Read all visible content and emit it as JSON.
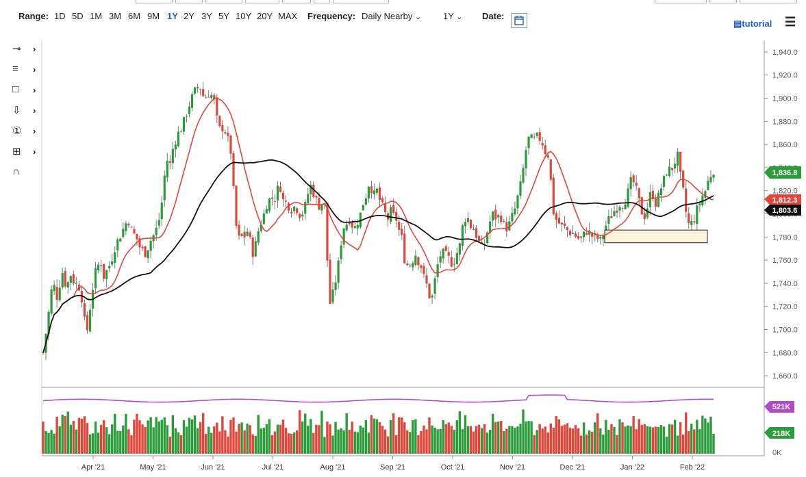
{
  "toolbar": {
    "range_label": "Range:",
    "ranges": [
      "1D",
      "5D",
      "1M",
      "3M",
      "6M",
      "9M",
      "1Y",
      "2Y",
      "3Y",
      "5Y",
      "10Y",
      "20Y",
      "MAX"
    ],
    "active_range": "1Y",
    "frequency_label": "Frequency:",
    "frequency_value": "Daily Nearby",
    "period_value": "1Y",
    "date_label": "Date:",
    "tutorial_label": "tutorial"
  },
  "icons": [
    "line-tool-icon",
    "fib-tool-icon",
    "rectangle-tool-icon",
    "arrow-down-tool-icon",
    "numbered-marker-icon",
    "elliott-tool-icon",
    "magnet-icon",
    "calendar-icon",
    "menu-icon"
  ],
  "colors": {
    "up": "#2a9d3a",
    "down": "#e0473a",
    "ma_short": "#e0473a",
    "ma_long": "#111111",
    "volume_avg": "#b04cc8",
    "accent": "#1f5fbf"
  },
  "chart_data": {
    "type": "candlestick",
    "y_axis": {
      "min": 1650,
      "max": 1950,
      "ticks": [
        1940,
        1920,
        1900,
        1880,
        1860,
        1840,
        1820,
        1800,
        1780,
        1760,
        1740,
        1720,
        1700,
        1680,
        1660
      ],
      "tick_labels": [
        "1,940.0",
        "1,920.0",
        "1,900.0",
        "1,880.0",
        "1,860.0",
        "1,840.0",
        "1,820.0",
        "1,800.0",
        "1,780.0",
        "1,760.0",
        "1,740.0",
        "1,720.0",
        "1,700.0",
        "1,680.0",
        "1,660.0"
      ]
    },
    "x_axis": {
      "labels": [
        "Apr '21",
        "May '21",
        "Jun '21",
        "Jul '21",
        "Aug '21",
        "Sep '21",
        "Oct '21",
        "Nov '21",
        "Dec '21",
        "Jan '22",
        "Feb '22"
      ]
    },
    "last_price": "1,836.8",
    "ma_short_value": "1,812.3",
    "ma_long_value": "1,803.6",
    "volume": {
      "ticks": [
        "521K",
        "218K",
        "0K"
      ],
      "avg_label": "521K",
      "last_label": "218K",
      "zero_label": "0K"
    },
    "support_zone": {
      "low": 1775,
      "high": 1786
    },
    "price_path": [
      [
        0,
        1680
      ],
      [
        6,
        1705
      ],
      [
        14,
        1742
      ],
      [
        20,
        1728
      ],
      [
        28,
        1750
      ],
      [
        34,
        1736
      ],
      [
        40,
        1748
      ],
      [
        46,
        1740
      ],
      [
        52,
        1738
      ],
      [
        58,
        1724
      ],
      [
        63,
        1690
      ],
      [
        67,
        1716
      ],
      [
        70,
        1722
      ],
      [
        74,
        1744
      ],
      [
        78,
        1752
      ],
      [
        84,
        1760
      ],
      [
        88,
        1745
      ],
      [
        94,
        1752
      ],
      [
        99,
        1758
      ],
      [
        104,
        1770
      ],
      [
        110,
        1778
      ],
      [
        118,
        1788
      ],
      [
        124,
        1796
      ],
      [
        130,
        1784
      ],
      [
        136,
        1780
      ],
      [
        142,
        1770
      ],
      [
        150,
        1766
      ],
      [
        156,
        1776
      ],
      [
        162,
        1782
      ],
      [
        168,
        1790
      ],
      [
        174,
        1812
      ],
      [
        178,
        1836
      ],
      [
        182,
        1848
      ],
      [
        186,
        1842
      ],
      [
        190,
        1858
      ],
      [
        196,
        1868
      ],
      [
        202,
        1874
      ],
      [
        206,
        1880
      ],
      [
        212,
        1892
      ],
      [
        216,
        1898
      ],
      [
        220,
        1904
      ],
      [
        224,
        1908
      ],
      [
        228,
        1912
      ],
      [
        232,
        1906
      ],
      [
        236,
        1898
      ],
      [
        240,
        1904
      ],
      [
        244,
        1905
      ],
      [
        248,
        1900
      ],
      [
        252,
        1894
      ],
      [
        256,
        1870
      ],
      [
        260,
        1876
      ],
      [
        266,
        1872
      ],
      [
        270,
        1864
      ],
      [
        274,
        1856
      ],
      [
        278,
        1822
      ],
      [
        282,
        1790
      ],
      [
        286,
        1778
      ],
      [
        290,
        1782
      ],
      [
        294,
        1780
      ],
      [
        298,
        1786
      ],
      [
        302,
        1778
      ],
      [
        306,
        1766
      ],
      [
        310,
        1772
      ],
      [
        314,
        1784
      ],
      [
        318,
        1792
      ],
      [
        322,
        1798
      ],
      [
        326,
        1808
      ],
      [
        330,
        1812
      ],
      [
        334,
        1814
      ],
      [
        338,
        1812
      ],
      [
        342,
        1820
      ],
      [
        346,
        1826
      ],
      [
        350,
        1812
      ],
      [
        354,
        1810
      ],
      [
        358,
        1808
      ],
      [
        362,
        1804
      ],
      [
        366,
        1806
      ],
      [
        370,
        1806
      ],
      [
        374,
        1800
      ],
      [
        378,
        1800
      ],
      [
        382,
        1804
      ],
      [
        386,
        1814
      ],
      [
        390,
        1826
      ],
      [
        394,
        1820
      ],
      [
        398,
        1814
      ],
      [
        402,
        1806
      ],
      [
        406,
        1810
      ],
      [
        410,
        1808
      ],
      [
        414,
        1806
      ],
      [
        416,
        1740
      ],
      [
        420,
        1720
      ],
      [
        424,
        1732
      ],
      [
        428,
        1744
      ],
      [
        432,
        1758
      ],
      [
        436,
        1778
      ],
      [
        440,
        1790
      ],
      [
        444,
        1792
      ],
      [
        448,
        1796
      ],
      [
        452,
        1790
      ],
      [
        456,
        1788
      ],
      [
        460,
        1794
      ],
      [
        464,
        1800
      ],
      [
        468,
        1810
      ],
      [
        472,
        1816
      ],
      [
        476,
        1826
      ],
      [
        480,
        1822
      ],
      [
        484,
        1816
      ],
      [
        488,
        1820
      ],
      [
        492,
        1812
      ],
      [
        496,
        1806
      ],
      [
        500,
        1800
      ],
      [
        504,
        1796
      ],
      [
        508,
        1802
      ],
      [
        512,
        1798
      ],
      [
        516,
        1796
      ],
      [
        520,
        1786
      ],
      [
        524,
        1780
      ],
      [
        528,
        1762
      ],
      [
        532,
        1756
      ],
      [
        536,
        1756
      ],
      [
        540,
        1760
      ],
      [
        544,
        1766
      ],
      [
        548,
        1760
      ],
      [
        552,
        1756
      ],
      [
        556,
        1746
      ],
      [
        560,
        1740
      ],
      [
        564,
        1730
      ],
      [
        568,
        1726
      ],
      [
        572,
        1740
      ],
      [
        576,
        1754
      ],
      [
        580,
        1764
      ],
      [
        584,
        1766
      ],
      [
        588,
        1764
      ],
      [
        592,
        1762
      ],
      [
        596,
        1758
      ],
      [
        600,
        1758
      ],
      [
        604,
        1766
      ],
      [
        608,
        1768
      ],
      [
        612,
        1786
      ],
      [
        616,
        1796
      ],
      [
        620,
        1798
      ],
      [
        624,
        1790
      ],
      [
        628,
        1788
      ],
      [
        632,
        1784
      ],
      [
        636,
        1776
      ],
      [
        640,
        1772
      ],
      [
        644,
        1770
      ],
      [
        648,
        1782
      ],
      [
        652,
        1790
      ],
      [
        656,
        1800
      ],
      [
        660,
        1798
      ],
      [
        664,
        1796
      ],
      [
        668,
        1800
      ],
      [
        672,
        1792
      ],
      [
        676,
        1788
      ],
      [
        680,
        1788
      ],
      [
        684,
        1796
      ],
      [
        688,
        1800
      ],
      [
        692,
        1810
      ],
      [
        696,
        1820
      ],
      [
        700,
        1830
      ],
      [
        704,
        1850
      ],
      [
        708,
        1862
      ],
      [
        712,
        1868
      ],
      [
        716,
        1860
      ],
      [
        720,
        1868
      ],
      [
        724,
        1864
      ],
      [
        728,
        1866
      ],
      [
        732,
        1856
      ],
      [
        736,
        1852
      ],
      [
        740,
        1850
      ],
      [
        744,
        1808
      ],
      [
        748,
        1796
      ],
      [
        752,
        1794
      ],
      [
        756,
        1790
      ],
      [
        760,
        1788
      ],
      [
        764,
        1788
      ],
      [
        768,
        1784
      ],
      [
        772,
        1784
      ],
      [
        776,
        1782
      ],
      [
        780,
        1780
      ],
      [
        784,
        1778
      ],
      [
        788,
        1778
      ],
      [
        792,
        1784
      ],
      [
        796,
        1786
      ],
      [
        800,
        1782
      ],
      [
        804,
        1780
      ],
      [
        808,
        1780
      ],
      [
        812,
        1778
      ],
      [
        816,
        1776
      ],
      [
        820,
        1786
      ],
      [
        824,
        1792
      ],
      [
        828,
        1796
      ],
      [
        832,
        1800
      ],
      [
        836,
        1804
      ],
      [
        840,
        1806
      ],
      [
        844,
        1810
      ],
      [
        848,
        1808
      ],
      [
        852,
        1814
      ],
      [
        856,
        1820
      ],
      [
        860,
        1830
      ],
      [
        864,
        1826
      ],
      [
        868,
        1818
      ],
      [
        872,
        1808
      ],
      [
        876,
        1800
      ],
      [
        880,
        1798
      ],
      [
        884,
        1808
      ],
      [
        888,
        1818
      ],
      [
        892,
        1816
      ],
      [
        896,
        1808
      ],
      [
        900,
        1816
      ],
      [
        904,
        1824
      ],
      [
        908,
        1830
      ],
      [
        912,
        1838
      ],
      [
        916,
        1838
      ],
      [
        920,
        1840
      ],
      [
        924,
        1846
      ],
      [
        928,
        1850
      ],
      [
        932,
        1830
      ],
      [
        936,
        1818
      ],
      [
        940,
        1800
      ],
      [
        944,
        1790
      ],
      [
        948,
        1792
      ],
      [
        952,
        1796
      ],
      [
        956,
        1804
      ],
      [
        960,
        1810
      ],
      [
        964,
        1816
      ],
      [
        968,
        1820
      ],
      [
        972,
        1828
      ],
      [
        976,
        1834
      ],
      [
        980,
        1838
      ]
    ]
  }
}
